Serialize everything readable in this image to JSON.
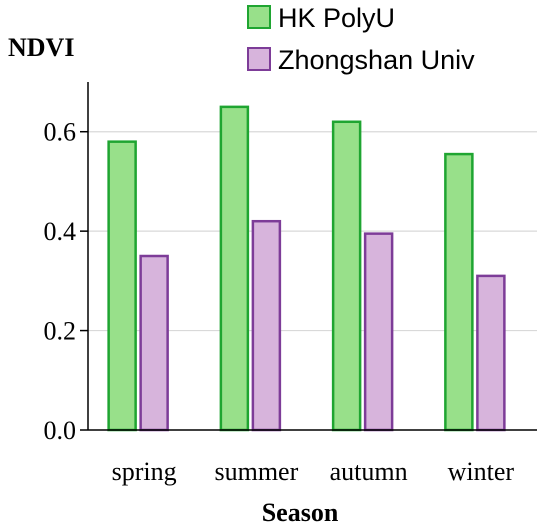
{
  "chart_data": {
    "type": "bar",
    "categories": [
      "spring",
      "summer",
      "autumn",
      "winter"
    ],
    "series": [
      {
        "name": "HK PolyU",
        "values": [
          0.58,
          0.65,
          0.62,
          0.555
        ],
        "fill": "#98e08a",
        "stroke": "#1fa531"
      },
      {
        "name": "Zhongshan Univ",
        "values": [
          0.35,
          0.42,
          0.395,
          0.31
        ],
        "fill": "#d7b4dc",
        "stroke": "#7d3c98"
      }
    ],
    "title": "",
    "xlabel": "Season",
    "ylabel": "NDVI",
    "ylim": [
      0,
      0.7
    ],
    "yticks": [
      {
        "value": 0.0,
        "label": "0.0"
      },
      {
        "value": 0.2,
        "label": "0.2"
      },
      {
        "value": 0.4,
        "label": "0.4"
      },
      {
        "value": 0.6,
        "label": "0.6"
      }
    ],
    "grid": true,
    "legend": "top-right"
  }
}
